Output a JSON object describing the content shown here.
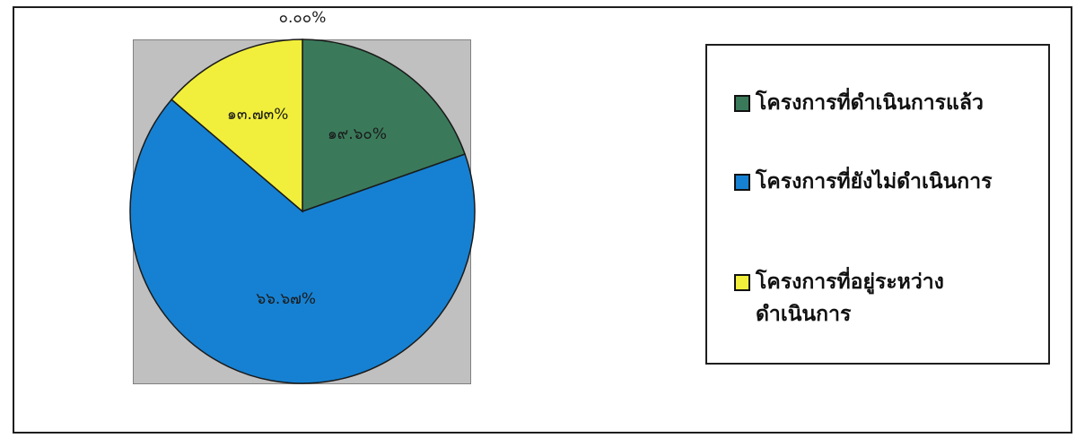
{
  "chart_data": {
    "type": "pie",
    "title": "",
    "slices": [
      {
        "label": "โครงการที่ดำเนินการแล้ว",
        "value": 19.6,
        "value_label": "๑๙.๖๐%",
        "color": "#3a7a5a"
      },
      {
        "label": "โครงการที่ยังไม่ดำเนินการ",
        "value": 66.67,
        "value_label": "๖๖.๖๗%",
        "color": "#1681d2"
      },
      {
        "label": "โครงการที่อยู่ระหว่าง\nดำเนินการ",
        "value": 13.73,
        "value_label": "๑๓.๗๓%",
        "color": "#f2ef3c"
      },
      {
        "label": "",
        "value": 0.0,
        "value_label": "๐.๐๐%",
        "color": "#cccccc"
      }
    ],
    "legend_position": "right",
    "plot_background": "#c0c0c0",
    "start_angle": "12 o'clock",
    "direction": "clockwise"
  }
}
